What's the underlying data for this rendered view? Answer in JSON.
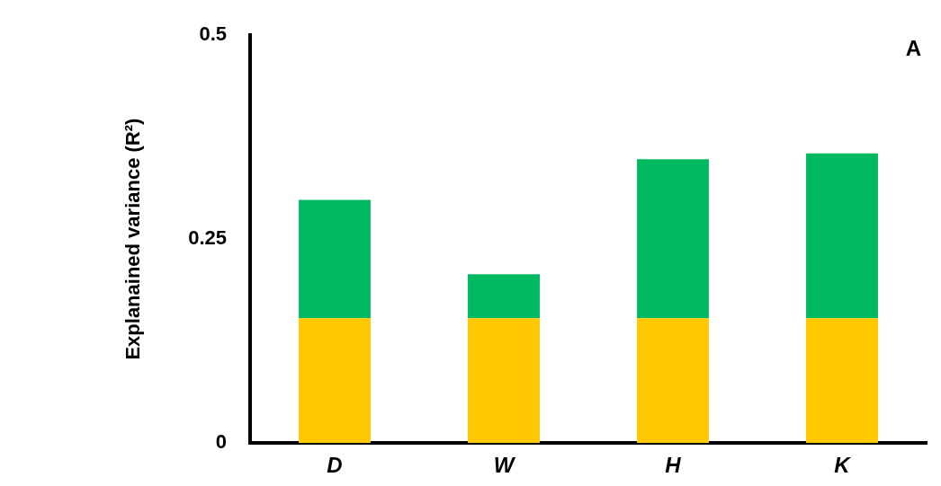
{
  "chart_data": {
    "type": "bar",
    "stacked": true,
    "ylabel": "Explanained variance (R²)",
    "categories": [
      "D",
      "W",
      "H",
      "K"
    ],
    "series": [
      {
        "color": "#ffc800",
        "values": [
          0.153,
          0.153,
          0.153,
          0.153
        ]
      },
      {
        "color": "#00b960",
        "values": [
          0.145,
          0.054,
          0.195,
          0.202
        ]
      }
    ],
    "ylim": [
      0,
      0.5
    ],
    "yticks": [
      0,
      0.25,
      0.5
    ],
    "grid": false,
    "legend": false,
    "annotations": [
      "A"
    ]
  }
}
